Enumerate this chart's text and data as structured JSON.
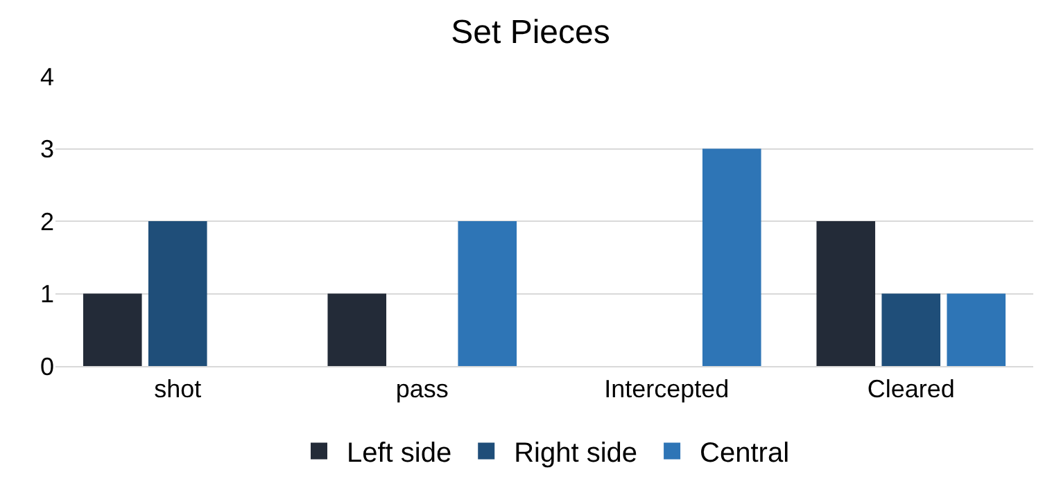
{
  "chart_data": {
    "type": "bar",
    "title": "Set Pieces",
    "categories": [
      "shot",
      "pass",
      "Intercepted",
      "Cleared"
    ],
    "series": [
      {
        "name": "Left side",
        "color": "#232b38",
        "values": [
          1,
          1,
          0,
          2
        ]
      },
      {
        "name": "Right side",
        "color": "#1f4e79",
        "values": [
          2,
          0,
          0,
          1
        ]
      },
      {
        "name": "Central",
        "color": "#2e75b6",
        "values": [
          0,
          2,
          3,
          1
        ]
      }
    ],
    "ylim": [
      0,
      4
    ],
    "yticks": [
      0,
      1,
      2,
      3,
      4
    ],
    "grid": "y",
    "legend": "bottom"
  }
}
